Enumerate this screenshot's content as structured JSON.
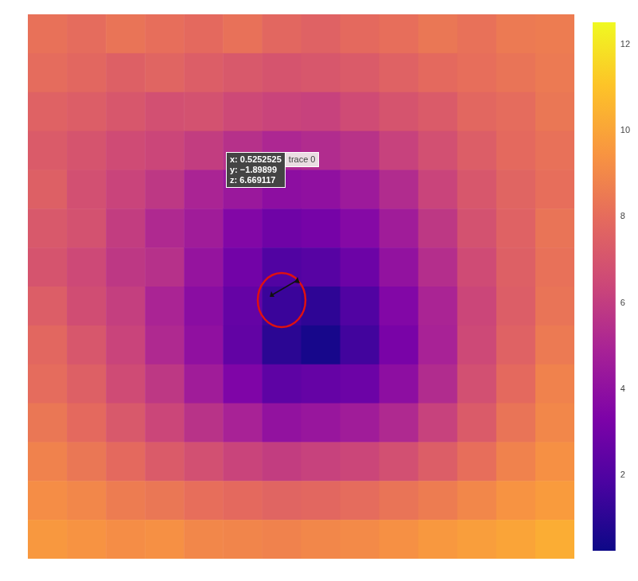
{
  "chart_data": {
    "type": "heatmap",
    "tick_labels": false,
    "cells": [
      [
        8.2,
        8.0,
        8.3,
        8.1,
        7.9,
        8.2,
        7.8,
        7.6,
        7.9,
        8.1,
        8.4,
        8.2,
        8.5,
        8.6
      ],
      [
        8.0,
        7.8,
        7.5,
        7.7,
        7.4,
        7.2,
        7.0,
        7.1,
        7.3,
        7.6,
        7.9,
        8.1,
        8.3,
        8.5
      ],
      [
        7.6,
        7.4,
        7.1,
        6.8,
        6.9,
        6.5,
        6.3,
        6.2,
        6.6,
        7.0,
        7.3,
        7.8,
        8.0,
        8.4
      ],
      [
        7.3,
        7.0,
        6.6,
        6.4,
        6.0,
        5.5,
        5.1,
        5.3,
        5.6,
        6.2,
        6.8,
        7.4,
        7.9,
        8.2
      ],
      [
        7.5,
        6.8,
        6.3,
        5.8,
        5.0,
        4.4,
        3.9,
        4.0,
        4.5,
        5.3,
        6.3,
        7.1,
        7.7,
        8.1
      ],
      [
        7.2,
        6.9,
        6.0,
        5.2,
        4.6,
        3.5,
        2.9,
        3.1,
        3.6,
        4.6,
        5.8,
        6.9,
        7.6,
        8.3
      ],
      [
        7.0,
        6.5,
        5.8,
        5.5,
        4.2,
        3.0,
        2.0,
        2.2,
        2.8,
        4.1,
        5.4,
        6.6,
        7.5,
        8.2
      ],
      [
        7.4,
        6.7,
        6.1,
        5.0,
        3.8,
        2.6,
        1.4,
        1.1,
        2.0,
        3.5,
        5.0,
        6.4,
        7.4,
        8.3
      ],
      [
        7.8,
        7.1,
        6.3,
        5.2,
        4.0,
        2.5,
        1.0,
        0.5,
        1.6,
        3.2,
        4.9,
        6.5,
        7.6,
        8.5
      ],
      [
        8.0,
        7.5,
        6.6,
        5.8,
        4.6,
        3.4,
        2.4,
        2.6,
        2.8,
        3.9,
        5.3,
        6.8,
        7.9,
        8.8
      ],
      [
        8.4,
        7.9,
        7.2,
        6.4,
        5.6,
        4.9,
        4.1,
        4.3,
        4.6,
        5.2,
        6.2,
        7.3,
        8.3,
        9.0
      ],
      [
        8.8,
        8.4,
        7.9,
        7.3,
        6.8,
        6.3,
        6.0,
        6.2,
        6.4,
        6.8,
        7.4,
        8.1,
        8.8,
        9.3
      ],
      [
        9.2,
        9.0,
        8.6,
        8.4,
        8.1,
        7.9,
        7.7,
        7.8,
        8.0,
        8.3,
        8.6,
        9.0,
        9.4,
        9.7
      ],
      [
        9.6,
        9.4,
        9.2,
        9.3,
        9.0,
        8.9,
        8.8,
        9.0,
        9.1,
        9.3,
        9.6,
        9.8,
        10.0,
        10.3
      ]
    ],
    "colorbar": {
      "range": [
        0.24,
        12.52
      ],
      "ticks": [
        2,
        4,
        6,
        8,
        10,
        12
      ]
    },
    "hover_label": {
      "trace": "trace 0",
      "lines": [
        "x: 0.5252525",
        "y: −1.89899",
        "z: 6.669117"
      ]
    }
  }
}
